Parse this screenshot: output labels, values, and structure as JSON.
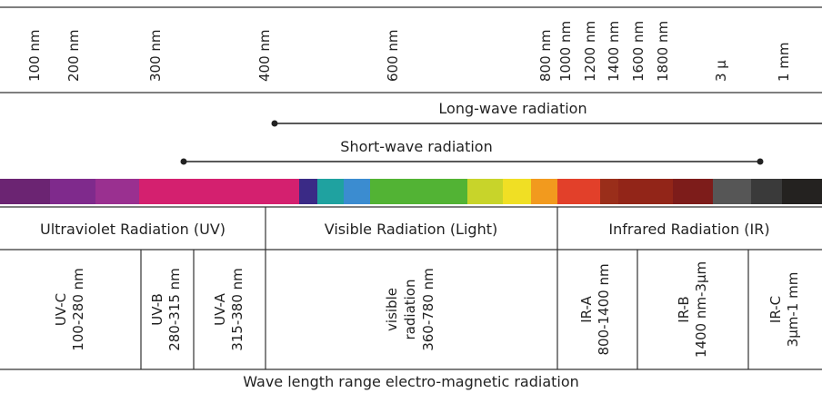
{
  "wavelength_ticks": [
    "100 nm",
    "200 nm",
    "300 nm",
    "400 nm",
    "600 nm",
    "800 nm",
    "1000 nm",
    "1200 nm",
    "1400 nm",
    "1600 nm",
    "1800 nm",
    "3 µ",
    "1 mm"
  ],
  "ranges": {
    "long_wave": "Long-wave radiation",
    "short_wave": "Short-wave radiation"
  },
  "spectrum_colors": [
    "#6b2472",
    "#7f2a8c",
    "#9a3090",
    "#d4206f",
    "#d4206f",
    "#d4206f",
    "#d4206f",
    "#3a2a86",
    "#1fa2a0",
    "#3b8cd0",
    "#52b334",
    "#52b334",
    "#c8d42a",
    "#f0df24",
    "#f29a1e",
    "#e2402a",
    "#9a2e1a",
    "#922518",
    "#7d1c1a",
    "#565656",
    "#3a3a3a",
    "#242220",
    "#1c1a18"
  ],
  "categories": [
    {
      "label": "Ultraviolet Radiation (UV)"
    },
    {
      "label": "Visible Radiation (Light)"
    },
    {
      "label": "Infrared Radiation (IR)"
    }
  ],
  "bands": [
    {
      "name": "UV-C",
      "range": "100-280 nm"
    },
    {
      "name": "UV-B",
      "range": "280-315 nm"
    },
    {
      "name": "UV-A",
      "range": "315-380 nm"
    },
    {
      "name": "visible",
      "name2": "radiation",
      "range": "360-780 nm"
    },
    {
      "name": "IR-A",
      "range": "800-1400 nm"
    },
    {
      "name": "IR-B",
      "range": "1400 nm-3µm"
    },
    {
      "name": "IR-C",
      "range": "3µm-1 mm"
    }
  ],
  "footer": "Wave length range electro-magnetic radiation"
}
